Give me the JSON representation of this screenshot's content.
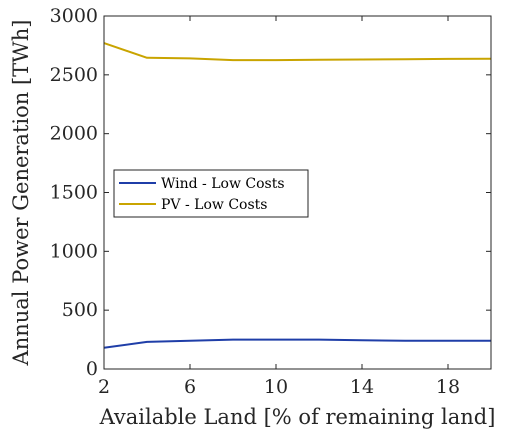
{
  "chart_data": {
    "type": "line",
    "xlabel": "Available Land [% of remaining land]",
    "ylabel": "Annual Power Generation [TWh]",
    "xlim": [
      2,
      20
    ],
    "ylim": [
      0,
      3000
    ],
    "xticks": [
      2,
      6,
      10,
      14,
      18
    ],
    "yticks": [
      0,
      500,
      1000,
      1500,
      2000,
      2500,
      3000
    ],
    "grid": false,
    "legend_position": "center-left",
    "series": [
      {
        "name": "Wind - Low Costs",
        "color": "#1f3ea8",
        "x": [
          2,
          4,
          6,
          8,
          10,
          12,
          14,
          16,
          18,
          20
        ],
        "y": [
          180,
          230,
          240,
          250,
          250,
          250,
          245,
          240,
          240,
          240
        ]
      },
      {
        "name": "PV - Low Costs",
        "color": "#c9a400",
        "x": [
          2,
          4,
          6,
          8,
          10,
          12,
          14,
          16,
          18,
          20
        ],
        "y": [
          2770,
          2645,
          2640,
          2625,
          2625,
          2628,
          2630,
          2633,
          2635,
          2637
        ]
      }
    ]
  }
}
